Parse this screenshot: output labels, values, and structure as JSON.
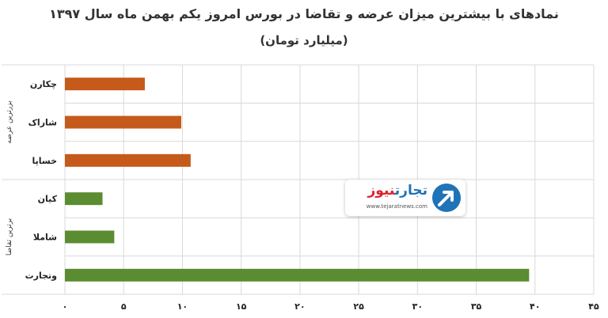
{
  "chart_data": {
    "type": "bar",
    "orientation": "horizontal",
    "title": "نمادهای با بیشترین میزان عرضه و تقاضا در بورس امروز یکم بهمن ماه سال ۱۳۹۷",
    "subtitle": "(میلیارد تومان)",
    "groups": [
      {
        "label": "بزرترین عرضه",
        "color": "#c65a1b",
        "categories": [
          "چکارن",
          "شاراک",
          "خساپا"
        ],
        "values": [
          6.8,
          9.9,
          10.7
        ]
      },
      {
        "label": "برترین تقاضا",
        "color": "#5b8c31",
        "categories": [
          "کیان",
          "شاملا",
          "وتجارت"
        ],
        "values": [
          3.2,
          4.2,
          39.5
        ]
      }
    ],
    "xlim": [
      0,
      45
    ],
    "x_ticks": [
      "۰",
      "۵",
      "۱۰",
      "۱۵",
      "۲۰",
      "۲۵",
      "۳۰",
      "۳۵",
      "۴۰",
      "۴۵"
    ],
    "grid": true,
    "legend": "none"
  },
  "watermark": {
    "name_main": "تجارت",
    "name_accent": "نیوز",
    "url": "www.tejaratnews.com",
    "icon": "arrow-circle-icon"
  }
}
